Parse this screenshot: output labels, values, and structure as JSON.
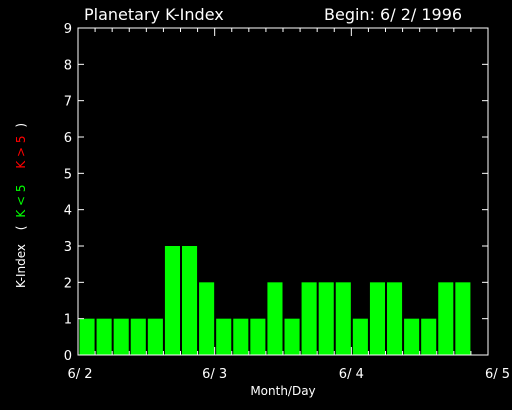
{
  "chart_data": {
    "type": "bar",
    "title": "Planetary K-Index",
    "begin_label": "Begin: 6/ 2/ 1996",
    "xlabel": "Month/Day",
    "ylabel": {
      "main": "K-Index",
      "open": "(",
      "green_part": "K < 5",
      "red_part": "K > 5",
      "close": ")"
    },
    "ylim": [
      0,
      9
    ],
    "yticks": [
      "0",
      "1",
      "2",
      "3",
      "4",
      "5",
      "6",
      "7",
      "8",
      "9"
    ],
    "xticks": [
      "6/ 2",
      "6/ 3",
      "6/ 4",
      "6/ 5"
    ],
    "bars_per_day": 8,
    "values": [
      1,
      1,
      1,
      1,
      1,
      3,
      3,
      2,
      1,
      1,
      1,
      2,
      1,
      2,
      2,
      2,
      1,
      2,
      2,
      1,
      1,
      2,
      2
    ],
    "colors": {
      "low": "#00ff00",
      "high": "#ff0000",
      "axes": "#ffffff",
      "background": "#000000"
    }
  }
}
